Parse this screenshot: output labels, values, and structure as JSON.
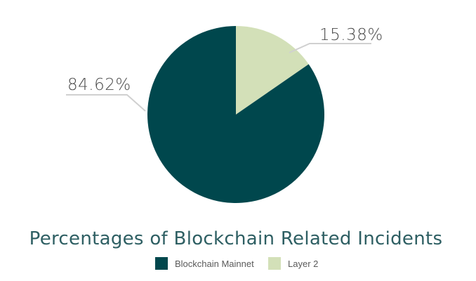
{
  "chart_data": {
    "type": "pie",
    "title": "Percentages of Blockchain Related Incidents",
    "slices": [
      {
        "label": "Layer 2",
        "value": 15.38,
        "display": "15.38%",
        "color": "#d3e0b8"
      },
      {
        "label": "Blockchain Mainnet",
        "value": 84.62,
        "display": "84.62%",
        "color": "#00474d"
      }
    ],
    "legend": {
      "placement": "bottom-center",
      "items": [
        {
          "label": "Blockchain Mainnet",
          "color": "#00474d"
        },
        {
          "label": "Layer 2",
          "color": "#d3e0b8"
        }
      ]
    },
    "leader_line_color": "#d0d0d0"
  }
}
